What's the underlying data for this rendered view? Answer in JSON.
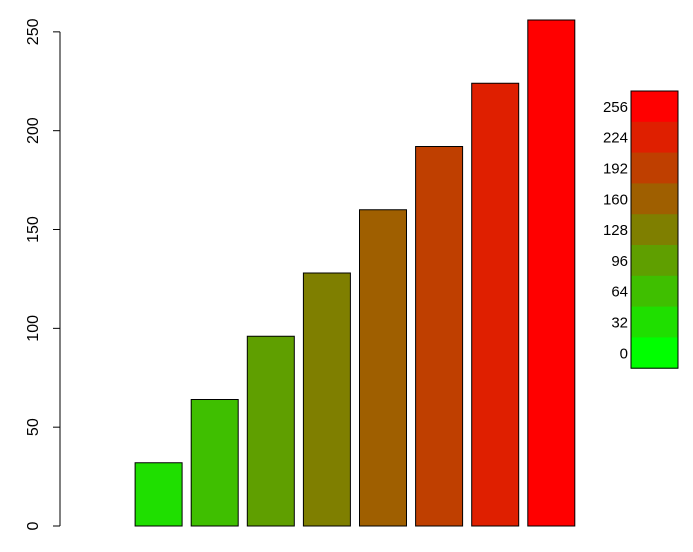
{
  "chart_data": {
    "type": "bar",
    "values": [
      0,
      32,
      64,
      96,
      128,
      160,
      192,
      224,
      256
    ],
    "colors": [
      "#00FF00",
      "#1FDF00",
      "#3FBF00",
      "#5F9F00",
      "#7F7F00",
      "#9F5F00",
      "#BF3F00",
      "#DF1F00",
      "#FF0000"
    ],
    "ylim": [
      0,
      256
    ],
    "yticks": [
      "0",
      "50",
      "100",
      "150",
      "200",
      "250"
    ],
    "legend": {
      "placement": "right",
      "labels": [
        "256",
        "224",
        "192",
        "160",
        "128",
        "96",
        "64",
        "32",
        "0"
      ],
      "colors": [
        "#FF0000",
        "#DF1F00",
        "#BF3F00",
        "#9F5F00",
        "#7F7F00",
        "#5F9F00",
        "#3FBF00",
        "#1FDF00",
        "#00FF00"
      ]
    }
  }
}
